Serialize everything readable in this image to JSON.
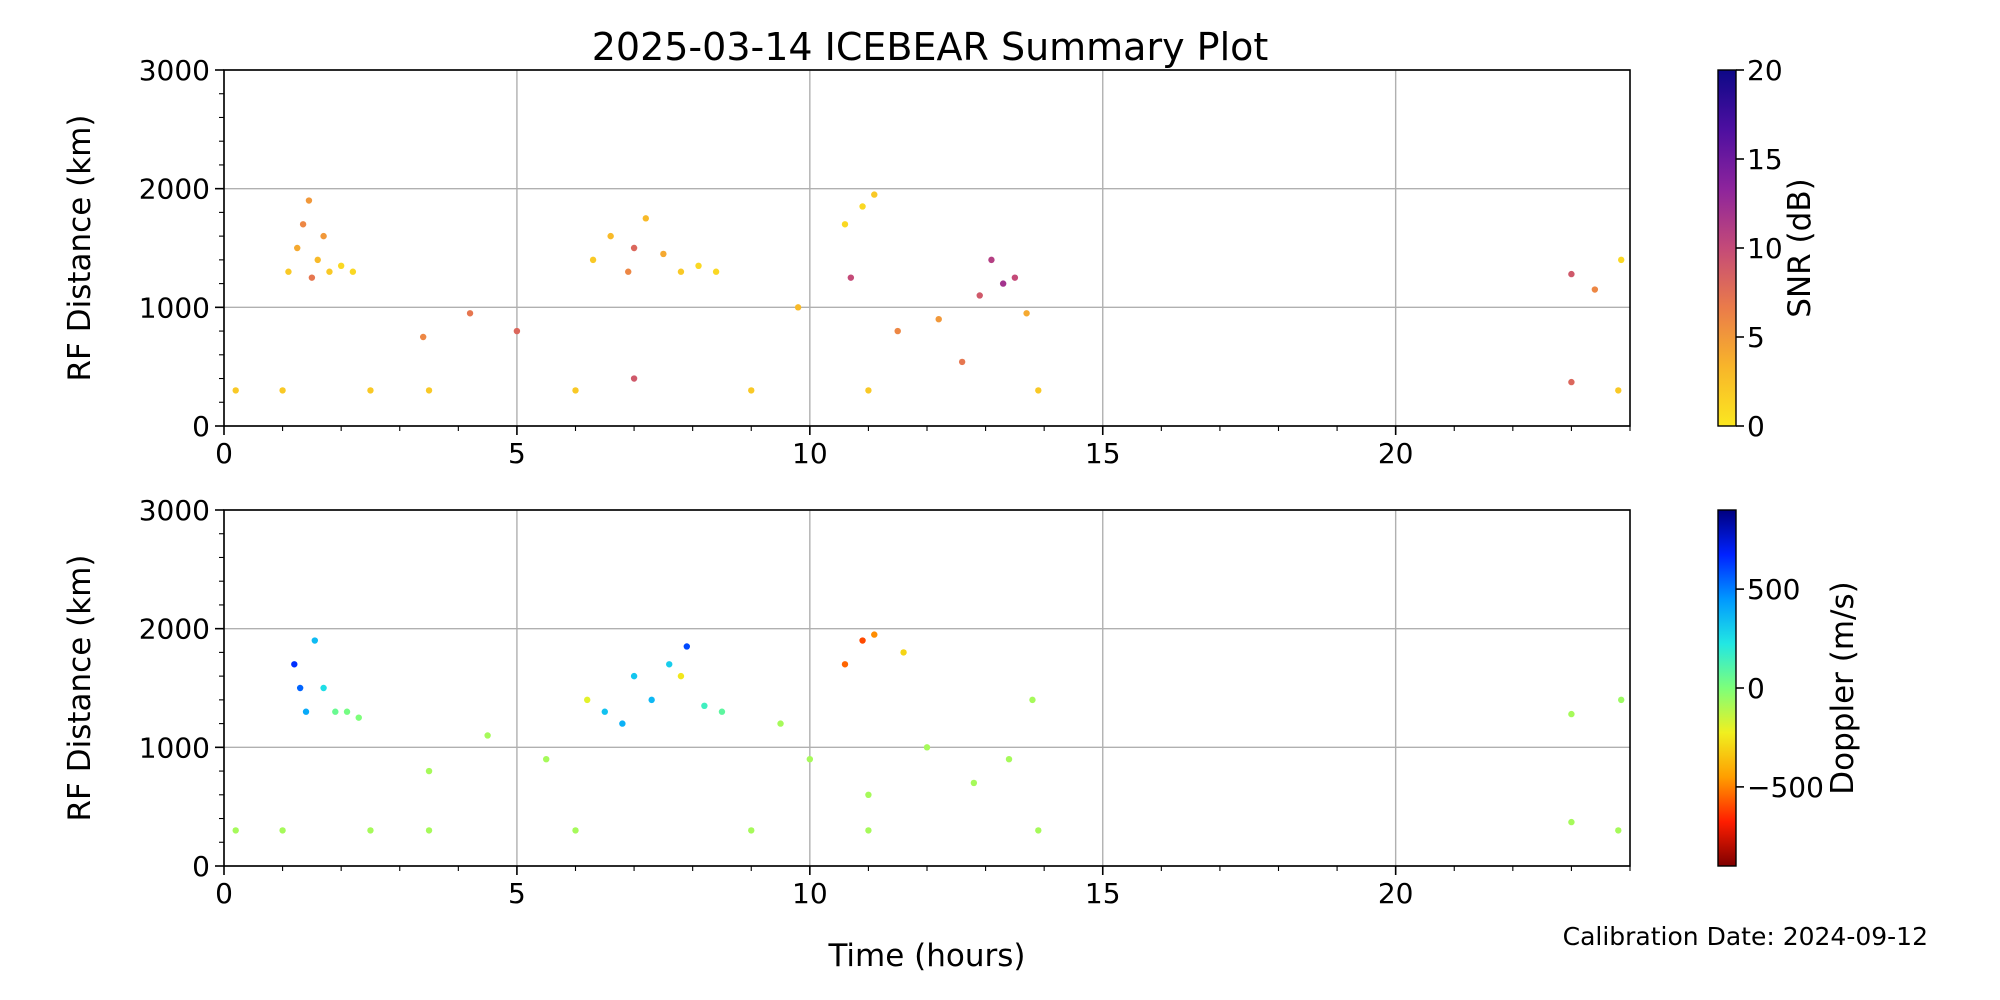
{
  "figure": {
    "title": "2025-03-14 ICEBEAR Summary Plot",
    "footer": "Calibration Date: 2024-09-12"
  },
  "chart_data": [
    {
      "type": "scatter",
      "xlabel": "",
      "ylabel": "RF Distance (km)",
      "xlim": [
        0,
        24
      ],
      "ylim": [
        0,
        3000
      ],
      "x_ticks": [
        0,
        5,
        10,
        15,
        20
      ],
      "y_ticks": [
        0,
        1000,
        2000,
        3000
      ],
      "grid": true,
      "colorbar": {
        "label": "SNR (dB)",
        "range": [
          0,
          20
        ],
        "ticks": [
          0,
          5,
          10,
          15,
          20
        ],
        "colormap": [
          "#fbe720",
          "#f8b52a",
          "#ea7b4a",
          "#c44a78",
          "#8d249c",
          "#4d0fa0",
          "#0d0887"
        ]
      },
      "series": [
        {
          "x": 1.1,
          "y": 1300,
          "c": 2
        },
        {
          "x": 1.25,
          "y": 1500,
          "c": 4
        },
        {
          "x": 1.35,
          "y": 1700,
          "c": 6
        },
        {
          "x": 1.45,
          "y": 1900,
          "c": 5
        },
        {
          "x": 1.5,
          "y": 1250,
          "c": 7
        },
        {
          "x": 1.6,
          "y": 1400,
          "c": 3
        },
        {
          "x": 1.7,
          "y": 1600,
          "c": 5
        },
        {
          "x": 1.8,
          "y": 1300,
          "c": 2
        },
        {
          "x": 2.0,
          "y": 1350,
          "c": 1
        },
        {
          "x": 2.2,
          "y": 1300,
          "c": 1
        },
        {
          "x": 6.3,
          "y": 1400,
          "c": 2
        },
        {
          "x": 6.6,
          "y": 1600,
          "c": 3
        },
        {
          "x": 6.9,
          "y": 1300,
          "c": 6
        },
        {
          "x": 7.0,
          "y": 1500,
          "c": 8
        },
        {
          "x": 7.2,
          "y": 1750,
          "c": 3
        },
        {
          "x": 7.5,
          "y": 1450,
          "c": 4
        },
        {
          "x": 7.8,
          "y": 1300,
          "c": 2
        },
        {
          "x": 8.1,
          "y": 1350,
          "c": 1
        },
        {
          "x": 8.4,
          "y": 1300,
          "c": 1
        },
        {
          "x": 10.6,
          "y": 1700,
          "c": 1
        },
        {
          "x": 10.9,
          "y": 1850,
          "c": 1
        },
        {
          "x": 11.1,
          "y": 1950,
          "c": 2
        },
        {
          "x": 9.8,
          "y": 1000,
          "c": 3
        },
        {
          "x": 10.7,
          "y": 1250,
          "c": 10
        },
        {
          "x": 11.5,
          "y": 800,
          "c": 6
        },
        {
          "x": 12.2,
          "y": 900,
          "c": 5
        },
        {
          "x": 12.9,
          "y": 1100,
          "c": 9
        },
        {
          "x": 13.1,
          "y": 1400,
          "c": 11
        },
        {
          "x": 13.3,
          "y": 1200,
          "c": 12
        },
        {
          "x": 13.5,
          "y": 1250,
          "c": 10
        },
        {
          "x": 13.7,
          "y": 950,
          "c": 4
        },
        {
          "x": 3.4,
          "y": 750,
          "c": 6
        },
        {
          "x": 4.2,
          "y": 950,
          "c": 7
        },
        {
          "x": 5.0,
          "y": 800,
          "c": 8
        },
        {
          "x": 7.0,
          "y": 400,
          "c": 9
        },
        {
          "x": 12.6,
          "y": 540,
          "c": 7
        },
        {
          "x": 23.0,
          "y": 1280,
          "c": 9
        },
        {
          "x": 23.0,
          "y": 370,
          "c": 8
        },
        {
          "x": 23.85,
          "y": 1400,
          "c": 1
        },
        {
          "x": 23.4,
          "y": 1150,
          "c": 6
        },
        {
          "x": 0.2,
          "y": 300,
          "c": 2
        },
        {
          "x": 1.0,
          "y": 300,
          "c": 2
        },
        {
          "x": 2.5,
          "y": 300,
          "c": 2
        },
        {
          "x": 3.5,
          "y": 300,
          "c": 2
        },
        {
          "x": 6.0,
          "y": 300,
          "c": 2
        },
        {
          "x": 9.0,
          "y": 300,
          "c": 2
        },
        {
          "x": 11.0,
          "y": 300,
          "c": 2
        },
        {
          "x": 13.9,
          "y": 300,
          "c": 2
        },
        {
          "x": 23.8,
          "y": 300,
          "c": 2
        }
      ]
    },
    {
      "type": "scatter",
      "xlabel": "Time (hours)",
      "ylabel": "RF Distance (km)",
      "xlim": [
        0,
        24
      ],
      "ylim": [
        0,
        3000
      ],
      "x_ticks": [
        0,
        5,
        10,
        15,
        20
      ],
      "y_ticks": [
        0,
        1000,
        2000,
        3000
      ],
      "grid": true,
      "colorbar": {
        "label": "Doppler (m/s)",
        "range": [
          -900,
          900
        ],
        "ticks": [
          -500,
          0,
          500
        ],
        "tick_labels": [
          "−500",
          "0",
          "500"
        ],
        "colormap": [
          "#7f0000",
          "#ff1e00",
          "#ff9e00",
          "#f0f020",
          "#7dff7a",
          "#22e7e3",
          "#0098ff",
          "#0022ff",
          "#00007f"
        ]
      },
      "series": [
        {
          "x": 1.2,
          "y": 1700,
          "c": 650
        },
        {
          "x": 1.3,
          "y": 1500,
          "c": 550
        },
        {
          "x": 1.4,
          "y": 1300,
          "c": 400
        },
        {
          "x": 1.55,
          "y": 1900,
          "c": 350
        },
        {
          "x": 1.7,
          "y": 1500,
          "c": 250
        },
        {
          "x": 1.9,
          "y": 1300,
          "c": 50
        },
        {
          "x": 2.1,
          "y": 1300,
          "c": 20
        },
        {
          "x": 2.3,
          "y": 1250,
          "c": 0
        },
        {
          "x": 6.2,
          "y": 1400,
          "c": -200
        },
        {
          "x": 6.5,
          "y": 1300,
          "c": 330
        },
        {
          "x": 6.8,
          "y": 1200,
          "c": 380
        },
        {
          "x": 7.0,
          "y": 1600,
          "c": 320
        },
        {
          "x": 7.3,
          "y": 1400,
          "c": 360
        },
        {
          "x": 7.6,
          "y": 1700,
          "c": 300
        },
        {
          "x": 7.8,
          "y": 1600,
          "c": -250
        },
        {
          "x": 7.9,
          "y": 1850,
          "c": 600
        },
        {
          "x": 8.2,
          "y": 1350,
          "c": 150
        },
        {
          "x": 8.5,
          "y": 1300,
          "c": 80
        },
        {
          "x": 10.6,
          "y": 1700,
          "c": -550
        },
        {
          "x": 10.9,
          "y": 1900,
          "c": -600
        },
        {
          "x": 11.1,
          "y": 1950,
          "c": -480
        },
        {
          "x": 11.6,
          "y": 1800,
          "c": -300
        },
        {
          "x": 9.5,
          "y": 1200,
          "c": -80
        },
        {
          "x": 10.0,
          "y": 900,
          "c": -80
        },
        {
          "x": 11.0,
          "y": 600,
          "c": -80
        },
        {
          "x": 12.0,
          "y": 1000,
          "c": -80
        },
        {
          "x": 12.8,
          "y": 700,
          "c": -80
        },
        {
          "x": 13.4,
          "y": 900,
          "c": -80
        },
        {
          "x": 13.8,
          "y": 1400,
          "c": -80
        },
        {
          "x": 3.5,
          "y": 800,
          "c": -80
        },
        {
          "x": 4.5,
          "y": 1100,
          "c": -80
        },
        {
          "x": 5.5,
          "y": 900,
          "c": -80
        },
        {
          "x": 23.0,
          "y": 1280,
          "c": -80
        },
        {
          "x": 23.0,
          "y": 370,
          "c": -80
        },
        {
          "x": 23.85,
          "y": 1400,
          "c": -60
        },
        {
          "x": 0.2,
          "y": 300,
          "c": -80
        },
        {
          "x": 1.0,
          "y": 300,
          "c": -80
        },
        {
          "x": 2.5,
          "y": 300,
          "c": -80
        },
        {
          "x": 3.5,
          "y": 300,
          "c": -80
        },
        {
          "x": 6.0,
          "y": 300,
          "c": -80
        },
        {
          "x": 9.0,
          "y": 300,
          "c": -80
        },
        {
          "x": 11.0,
          "y": 300,
          "c": -80
        },
        {
          "x": 13.9,
          "y": 300,
          "c": -80
        },
        {
          "x": 23.8,
          "y": 300,
          "c": -80
        }
      ]
    }
  ]
}
